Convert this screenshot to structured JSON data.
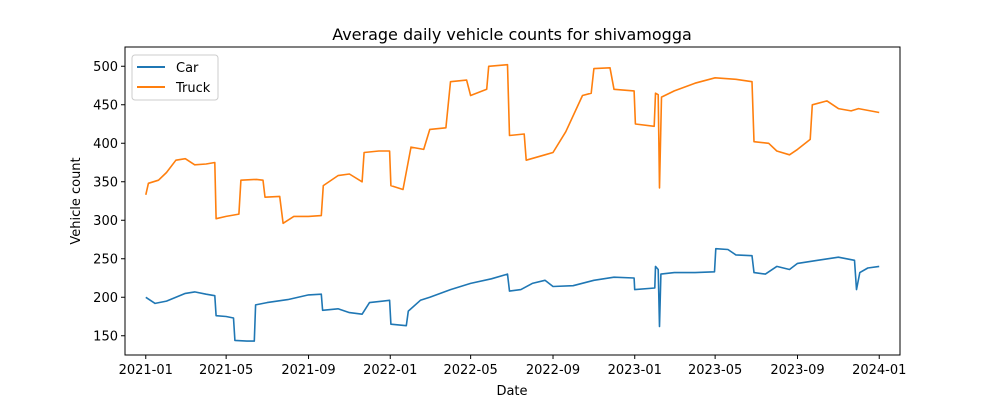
{
  "chart_data": {
    "type": "line",
    "title": "Average daily vehicle counts for shivamogga",
    "xlabel": "Date",
    "ylabel": "Vehicle count",
    "xlim": [
      "2020-12-01",
      "2024-02-01"
    ],
    "ylim": [
      125,
      525
    ],
    "x_ticks": [
      "2021-01",
      "2021-05",
      "2021-09",
      "2022-01",
      "2022-05",
      "2022-09",
      "2023-01",
      "2023-05",
      "2023-09",
      "2024-01"
    ],
    "y_ticks": [
      150,
      200,
      250,
      300,
      350,
      400,
      450,
      500
    ],
    "grid": false,
    "legend_position": "top-left",
    "series": [
      {
        "name": "Car",
        "color": "#1f77b4",
        "points": [
          [
            "2021-01-01",
            200
          ],
          [
            "2021-01-15",
            192
          ],
          [
            "2021-02-01",
            195
          ],
          [
            "2021-02-15",
            200
          ],
          [
            "2021-03-01",
            205
          ],
          [
            "2021-03-15",
            207
          ],
          [
            "2021-04-01",
            204
          ],
          [
            "2021-04-14",
            202
          ],
          [
            "2021-04-16",
            176
          ],
          [
            "2021-05-01",
            175
          ],
          [
            "2021-05-12",
            173
          ],
          [
            "2021-05-14",
            144
          ],
          [
            "2021-06-01",
            143
          ],
          [
            "2021-06-12",
            143
          ],
          [
            "2021-06-14",
            190
          ],
          [
            "2021-07-01",
            193
          ],
          [
            "2021-08-01",
            197
          ],
          [
            "2021-09-01",
            203
          ],
          [
            "2021-09-20",
            204
          ],
          [
            "2021-09-22",
            183
          ],
          [
            "2021-10-15",
            185
          ],
          [
            "2021-11-01",
            180
          ],
          [
            "2021-11-20",
            178
          ],
          [
            "2021-12-01",
            193
          ],
          [
            "2021-12-31",
            196
          ],
          [
            "2022-01-02",
            165
          ],
          [
            "2022-01-25",
            163
          ],
          [
            "2022-01-28",
            182
          ],
          [
            "2022-02-15",
            196
          ],
          [
            "2022-03-01",
            200
          ],
          [
            "2022-04-01",
            210
          ],
          [
            "2022-05-01",
            218
          ],
          [
            "2022-06-01",
            224
          ],
          [
            "2022-06-25",
            230
          ],
          [
            "2022-06-28",
            208
          ],
          [
            "2022-07-15",
            210
          ],
          [
            "2022-08-01",
            218
          ],
          [
            "2022-08-20",
            222
          ],
          [
            "2022-09-01",
            214
          ],
          [
            "2022-10-01",
            215
          ],
          [
            "2022-11-01",
            222
          ],
          [
            "2022-12-01",
            226
          ],
          [
            "2022-12-31",
            225
          ],
          [
            "2023-01-01",
            210
          ],
          [
            "2023-01-31",
            212
          ],
          [
            "2023-02-01",
            240
          ],
          [
            "2023-02-05",
            236
          ],
          [
            "2023-02-07",
            162
          ],
          [
            "2023-02-09",
            230
          ],
          [
            "2023-03-01",
            232
          ],
          [
            "2023-04-01",
            232
          ],
          [
            "2023-04-30",
            233
          ],
          [
            "2023-05-02",
            263
          ],
          [
            "2023-05-20",
            262
          ],
          [
            "2023-06-01",
            255
          ],
          [
            "2023-06-25",
            254
          ],
          [
            "2023-06-28",
            232
          ],
          [
            "2023-07-15",
            230
          ],
          [
            "2023-08-01",
            240
          ],
          [
            "2023-08-20",
            236
          ],
          [
            "2023-09-01",
            244
          ],
          [
            "2023-10-01",
            248
          ],
          [
            "2023-11-01",
            252
          ],
          [
            "2023-11-25",
            248
          ],
          [
            "2023-11-28",
            210
          ],
          [
            "2023-12-03",
            232
          ],
          [
            "2023-12-15",
            238
          ],
          [
            "2024-01-01",
            240
          ]
        ]
      },
      {
        "name": "Truck",
        "color": "#ff7f0e",
        "points": [
          [
            "2021-01-01",
            333
          ],
          [
            "2021-01-05",
            348
          ],
          [
            "2021-01-20",
            352
          ],
          [
            "2021-02-01",
            362
          ],
          [
            "2021-02-15",
            378
          ],
          [
            "2021-03-01",
            380
          ],
          [
            "2021-03-15",
            372
          ],
          [
            "2021-04-01",
            373
          ],
          [
            "2021-04-14",
            375
          ],
          [
            "2021-04-16",
            302
          ],
          [
            "2021-05-01",
            305
          ],
          [
            "2021-05-20",
            308
          ],
          [
            "2021-05-23",
            352
          ],
          [
            "2021-06-15",
            353
          ],
          [
            "2021-06-25",
            352
          ],
          [
            "2021-06-28",
            330
          ],
          [
            "2021-07-20",
            331
          ],
          [
            "2021-07-25",
            296
          ],
          [
            "2021-08-10",
            305
          ],
          [
            "2021-09-01",
            305
          ],
          [
            "2021-09-20",
            306
          ],
          [
            "2021-09-23",
            345
          ],
          [
            "2021-10-15",
            358
          ],
          [
            "2021-11-01",
            360
          ],
          [
            "2021-11-20",
            350
          ],
          [
            "2021-11-23",
            388
          ],
          [
            "2021-12-15",
            390
          ],
          [
            "2021-12-31",
            390
          ],
          [
            "2022-01-02",
            345
          ],
          [
            "2022-01-20",
            340
          ],
          [
            "2022-02-01",
            395
          ],
          [
            "2022-02-20",
            392
          ],
          [
            "2022-03-01",
            418
          ],
          [
            "2022-03-25",
            420
          ],
          [
            "2022-04-01",
            480
          ],
          [
            "2022-04-25",
            482
          ],
          [
            "2022-05-01",
            462
          ],
          [
            "2022-05-25",
            470
          ],
          [
            "2022-05-28",
            500
          ],
          [
            "2022-06-25",
            502
          ],
          [
            "2022-06-28",
            410
          ],
          [
            "2022-07-20",
            412
          ],
          [
            "2022-07-23",
            378
          ],
          [
            "2022-08-20",
            385
          ],
          [
            "2022-09-01",
            388
          ],
          [
            "2022-09-20",
            415
          ],
          [
            "2022-10-15",
            462
          ],
          [
            "2022-10-28",
            465
          ],
          [
            "2022-11-01",
            497
          ],
          [
            "2022-11-25",
            498
          ],
          [
            "2022-12-01",
            470
          ],
          [
            "2022-12-31",
            468
          ],
          [
            "2023-01-02",
            425
          ],
          [
            "2023-01-30",
            422
          ],
          [
            "2023-02-01",
            465
          ],
          [
            "2023-02-05",
            463
          ],
          [
            "2023-02-07",
            342
          ],
          [
            "2023-02-10",
            460
          ],
          [
            "2023-03-01",
            468
          ],
          [
            "2023-04-01",
            478
          ],
          [
            "2023-05-01",
            485
          ],
          [
            "2023-06-01",
            483
          ],
          [
            "2023-06-25",
            480
          ],
          [
            "2023-06-28",
            402
          ],
          [
            "2023-07-20",
            400
          ],
          [
            "2023-08-01",
            390
          ],
          [
            "2023-08-20",
            385
          ],
          [
            "2023-09-01",
            392
          ],
          [
            "2023-09-20",
            405
          ],
          [
            "2023-09-23",
            450
          ],
          [
            "2023-10-15",
            455
          ],
          [
            "2023-11-01",
            445
          ],
          [
            "2023-11-20",
            442
          ],
          [
            "2023-12-01",
            445
          ],
          [
            "2024-01-01",
            440
          ]
        ]
      }
    ]
  }
}
